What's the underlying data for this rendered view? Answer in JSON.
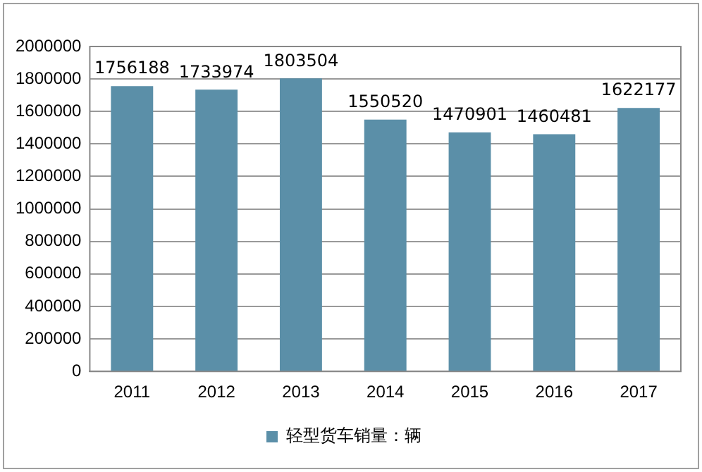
{
  "chart_data": {
    "type": "bar",
    "categories": [
      "2011",
      "2012",
      "2013",
      "2014",
      "2015",
      "2016",
      "2017"
    ],
    "series": [
      {
        "name": "轻型货车销量：辆",
        "color": "#5b8fa8",
        "values": [
          1756188,
          1733974,
          1803504,
          1550520,
          1470901,
          1460481,
          1622177
        ]
      }
    ],
    "ylim": [
      0,
      2000000
    ],
    "yticks": [
      0,
      200000,
      400000,
      600000,
      800000,
      1000000,
      1200000,
      1400000,
      1600000,
      1800000,
      2000000
    ],
    "grid": "y",
    "legend": "bottom",
    "data_labels": true
  }
}
